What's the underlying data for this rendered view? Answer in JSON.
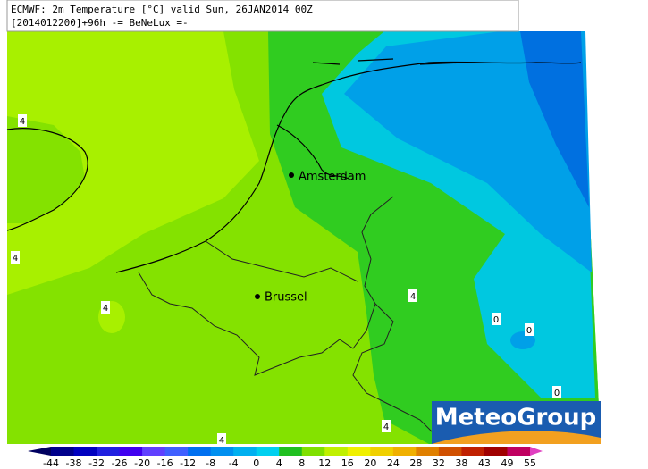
{
  "header": {
    "line1": "ECMWF: 2m Temperature [°C] valid Sun, 26JAN2014 00Z",
    "line2": "[2014012200]+96h -= BeNeLux =-"
  },
  "cities": [
    {
      "label": "Amsterdam"
    },
    {
      "label": "Brussel"
    }
  ],
  "contour_labels": [
    "4",
    "4",
    "4",
    "4",
    "4",
    "4",
    "0",
    "0",
    "0"
  ],
  "logo": "MeteoGroup",
  "colorbar": {
    "ticks": [
      -44,
      -38,
      -32,
      -26,
      -20,
      -16,
      -12,
      -8,
      -4,
      0,
      4,
      8,
      12,
      16,
      20,
      24,
      28,
      32,
      38,
      43,
      49,
      55
    ],
    "colors": [
      "#000060",
      "#00008c",
      "#0000c0",
      "#2020e0",
      "#4000f0",
      "#6040ff",
      "#4060ff",
      "#0070f0",
      "#0090f0",
      "#00b0f0",
      "#00d0f0",
      "#20c020",
      "#80e000",
      "#c0f000",
      "#f0f000",
      "#f0d000",
      "#f0b000",
      "#e08000",
      "#d05000",
      "#c02000",
      "#a00000",
      "#c00060",
      "#e040c0",
      "#ff80ff"
    ]
  }
}
